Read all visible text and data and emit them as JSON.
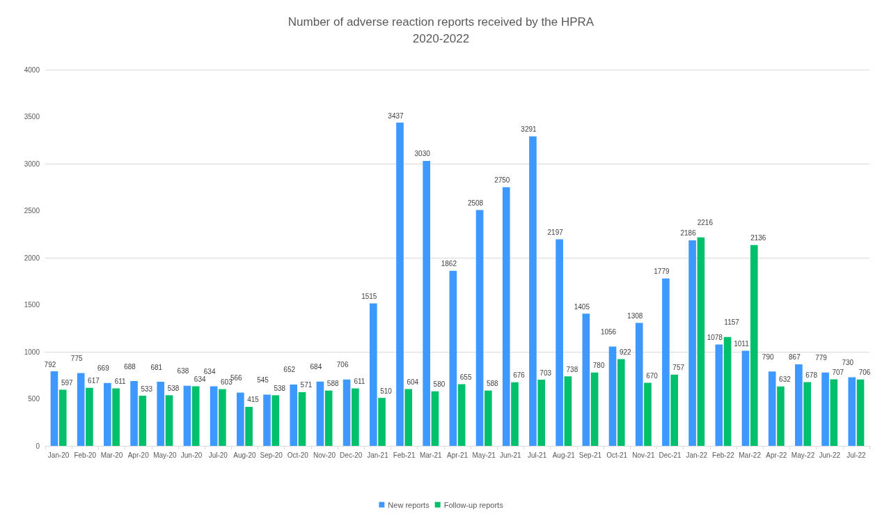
{
  "chart_data": {
    "type": "bar",
    "title": "Number of adverse reaction reports received by the HPRA\n2020-2022",
    "categories": [
      "Jan-20",
      "Feb-20",
      "Mar-20",
      "Apr-20",
      "May-20",
      "Jun-20",
      "Jul-20",
      "Aug-20",
      "Sep-20",
      "Oct-20",
      "Nov-20",
      "Dec-20",
      "Jan-21",
      "Feb-21",
      "Mar-21",
      "Apr-21",
      "May-21",
      "Jun-21",
      "Jul-21",
      "Aug-21",
      "Sep-21",
      "Oct-21",
      "Nov-21",
      "Dec-21",
      "Jan-22",
      "Feb-22",
      "Mar-22",
      "Apr-22",
      "May-22",
      "Jun-22",
      "Jul-22"
    ],
    "series": [
      {
        "name": "New reports",
        "color": "#3d99ff",
        "values": [
          792,
          775,
          669,
          688,
          681,
          638,
          634,
          566,
          545,
          652,
          684,
          706,
          1515,
          3437,
          3030,
          1862,
          2508,
          2750,
          3291,
          2197,
          1405,
          1056,
          1308,
          1779,
          2186,
          1078,
          1011,
          790,
          867,
          779,
          730
        ]
      },
      {
        "name": "Follow-up reports",
        "color": "#00c06b",
        "values": [
          597,
          617,
          611,
          533,
          538,
          634,
          603,
          415,
          538,
          571,
          588,
          611,
          510,
          604,
          580,
          655,
          588,
          676,
          703,
          738,
          780,
          922,
          670,
          757,
          2216,
          1157,
          2136,
          632,
          678,
          707,
          706
        ]
      }
    ],
    "ylim": [
      0,
      4000
    ],
    "yticks": [
      0,
      500,
      1000,
      1500,
      2000,
      2500,
      3000,
      3500,
      4000
    ],
    "grid": "y",
    "legend": "bottom",
    "data_labels": true
  }
}
